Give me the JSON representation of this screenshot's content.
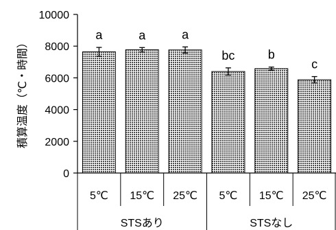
{
  "chart_data": {
    "type": "bar",
    "title": "",
    "xlabel": "",
    "ylabel": "積算温度（℃・時間）",
    "ylim": [
      0,
      10000
    ],
    "yticks": [
      0,
      2000,
      4000,
      6000,
      8000,
      10000
    ],
    "grid": false,
    "categories": [
      "5℃",
      "15℃",
      "25℃",
      "5℃",
      "15℃",
      "25℃"
    ],
    "groups": [
      {
        "label": "STSあり",
        "span": [
          0,
          2
        ]
      },
      {
        "label": "STSなし",
        "span": [
          3,
          5
        ]
      }
    ],
    "values": [
      7640,
      7770,
      7760,
      6400,
      6580,
      5880
    ],
    "errors": [
      280,
      140,
      190,
      230,
      100,
      200
    ],
    "significance": [
      "a",
      "a",
      "a",
      "bc",
      "b",
      "c"
    ],
    "bar_fill": "crosshatch",
    "bar_color": "#555555"
  }
}
